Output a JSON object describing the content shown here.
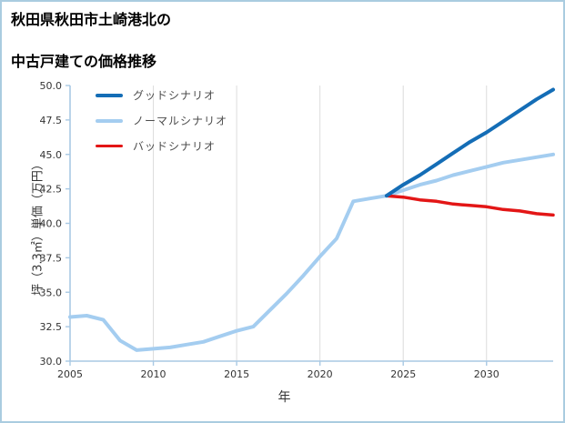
{
  "title": {
    "line1": "秋田県秋田市土崎港北の",
    "line2": "中古戸建ての価格推移"
  },
  "chart_data": {
    "type": "line",
    "title": "秋田県秋田市土崎港北の中古戸建ての価格推移",
    "xlabel": "年",
    "ylabel": "坪（3.3㎡）単価（万円）",
    "xlim": [
      2005,
      2034
    ],
    "ylim": [
      30.0,
      50.0
    ],
    "xtick_values": [
      2005,
      2010,
      2015,
      2020,
      2025,
      2030
    ],
    "xtick_labels": [
      "2005",
      "2010",
      "2015",
      "2020",
      "2025",
      "2030"
    ],
    "ytick_values": [
      30.0,
      32.5,
      35.0,
      37.5,
      40.0,
      42.5,
      45.0,
      47.5,
      50.0
    ],
    "ytick_labels": [
      "30.0",
      "32.5",
      "35.0",
      "37.5",
      "40.0",
      "42.5",
      "45.0",
      "47.5",
      "50.0"
    ],
    "grid": "vertical-only",
    "legend_position": "upper-left",
    "colors": {
      "grid": "#dcdcdc",
      "spine": "#a9c9e4",
      "tick_text": "#333333",
      "border": "#aacce0"
    },
    "series": [
      {
        "id": "good",
        "name": "グッドシナリオ",
        "color": "#146db6",
        "width": 4,
        "x": [
          2024,
          2025,
          2026,
          2027,
          2028,
          2029,
          2030,
          2031,
          2032,
          2033,
          2034
        ],
        "y": [
          42.0,
          42.8,
          43.5,
          44.3,
          45.1,
          45.9,
          46.6,
          47.4,
          48.2,
          49.0,
          49.7
        ]
      },
      {
        "id": "normal",
        "name": "ノーマルシナリオ",
        "color": "#a4cdf0",
        "width": 4,
        "x": [
          2005,
          2006,
          2007,
          2008,
          2009,
          2010,
          2011,
          2012,
          2013,
          2014,
          2015,
          2016,
          2017,
          2018,
          2019,
          2020,
          2021,
          2022,
          2023,
          2024,
          2025,
          2026,
          2027,
          2028,
          2029,
          2030,
          2031,
          2032,
          2033,
          2034
        ],
        "y": [
          33.2,
          33.3,
          33.0,
          31.5,
          30.8,
          30.9,
          31.0,
          31.2,
          31.4,
          31.8,
          32.2,
          32.5,
          33.7,
          34.9,
          36.2,
          37.6,
          38.9,
          41.6,
          41.8,
          42.0,
          42.4,
          42.8,
          43.1,
          43.5,
          43.8,
          44.1,
          44.4,
          44.6,
          44.8,
          45.0
        ]
      },
      {
        "id": "bad",
        "name": "バッドシナリオ",
        "color": "#e31616",
        "width": 3.5,
        "x": [
          2024,
          2025,
          2026,
          2027,
          2028,
          2029,
          2030,
          2031,
          2032,
          2033,
          2034
        ],
        "y": [
          42.0,
          41.9,
          41.7,
          41.6,
          41.4,
          41.3,
          41.2,
          41.0,
          40.9,
          40.7,
          40.6
        ]
      }
    ]
  }
}
